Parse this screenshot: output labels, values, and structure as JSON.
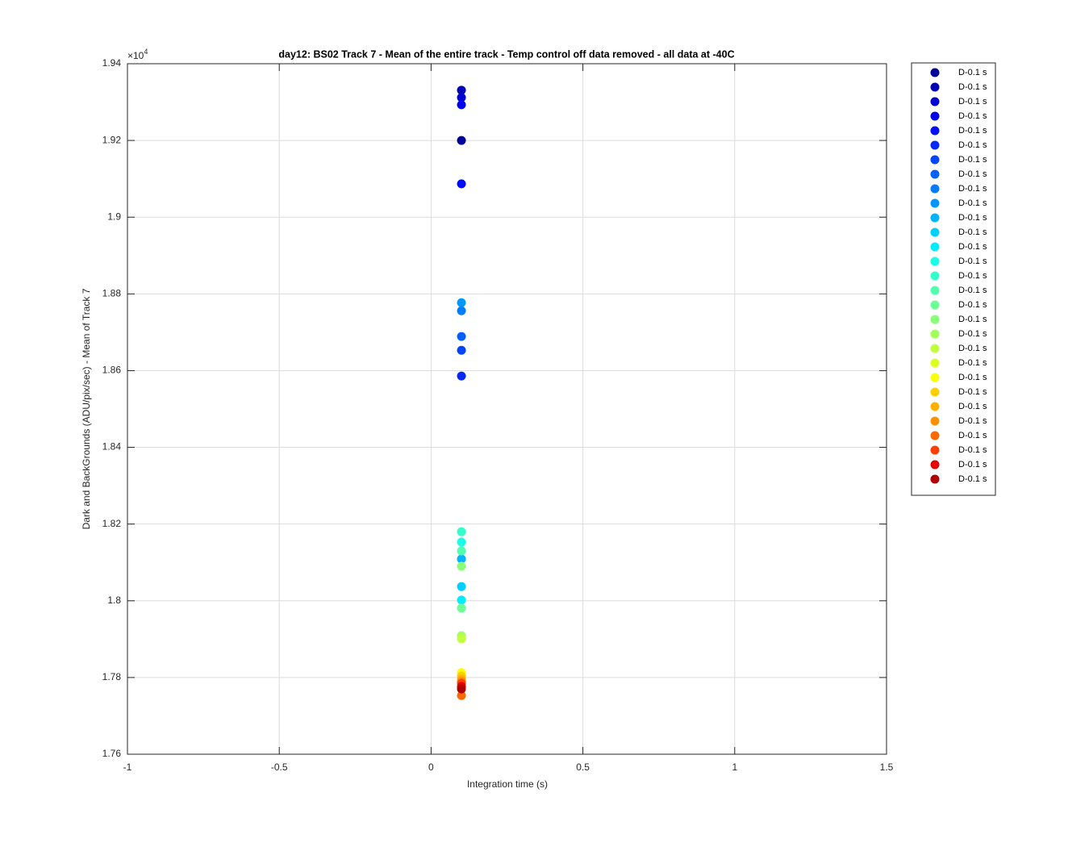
{
  "chart_data": {
    "type": "scatter",
    "title": "day12: BS02  Track 7 - Mean of the entire track - Temp control off data removed - all data at -40C",
    "x_label": "Integration time (s)",
    "y_label": "Dark and BackGrounds (ADU/pix/sec) - Mean of Track 7",
    "y_multiplier": {
      "base": "×10",
      "exponent": "4"
    },
    "xlim": [
      -1,
      1.5
    ],
    "xticks": [
      -1,
      -0.5,
      0,
      0.5,
      1,
      1.5
    ],
    "ylim": [
      17600,
      19400
    ],
    "yticks": [
      {
        "value": 17600,
        "label": "1.76"
      },
      {
        "value": 17800,
        "label": "1.78"
      },
      {
        "value": 18000,
        "label": "1.8"
      },
      {
        "value": 18200,
        "label": "1.82"
      },
      {
        "value": 18400,
        "label": "1.84"
      },
      {
        "value": 18600,
        "label": "1.86"
      },
      {
        "value": 18800,
        "label": "1.88"
      },
      {
        "value": 19000,
        "label": "1.9"
      },
      {
        "value": 19200,
        "label": "1.92"
      },
      {
        "value": 19400,
        "label": "1.94"
      }
    ],
    "grid": true,
    "legend_position": "outside-right",
    "series": [
      {
        "name": "D-0.1 s",
        "color": "#00009c",
        "x": [
          0.1
        ],
        "values": [
          19200
        ]
      },
      {
        "name": "D-0.1 s",
        "color": "#0000b8",
        "x": [
          0.1
        ],
        "values": [
          19331
        ]
      },
      {
        "name": "D-0.1 s",
        "color": "#0000d4",
        "x": [
          0.1
        ],
        "values": [
          19312
        ]
      },
      {
        "name": "D-0.1 s",
        "color": "#0000f0",
        "x": [
          0.1
        ],
        "values": [
          19293
        ]
      },
      {
        "name": "D-0.1 s",
        "color": "#000cff",
        "x": [
          0.1
        ],
        "values": [
          19087
        ]
      },
      {
        "name": "D-0.1 s",
        "color": "#0028ff",
        "x": [
          0.1
        ],
        "values": [
          18586
        ]
      },
      {
        "name": "D-0.1 s",
        "color": "#0044ff",
        "x": [
          0.1
        ],
        "values": [
          18653
        ]
      },
      {
        "name": "D-0.1 s",
        "color": "#0060ff",
        "x": [
          0.1
        ],
        "values": [
          18689
        ]
      },
      {
        "name": "D-0.1 s",
        "color": "#007cff",
        "x": [
          0.1
        ],
        "values": [
          18756
        ]
      },
      {
        "name": "D-0.1 s",
        "color": "#0098ff",
        "x": [
          0.1
        ],
        "values": [
          18777
        ]
      },
      {
        "name": "D-0.1 s",
        "color": "#00b4ff",
        "x": [
          0.1
        ],
        "values": [
          18109
        ]
      },
      {
        "name": "D-0.1 s",
        "color": "#00d0ff",
        "x": [
          0.1
        ],
        "values": [
          18037
        ]
      },
      {
        "name": "D-0.1 s",
        "color": "#00ecff",
        "x": [
          0.1
        ],
        "values": [
          18002
        ]
      },
      {
        "name": "D-0.1 s",
        "color": "#18ffe7",
        "x": [
          0.1
        ],
        "values": [
          18153
        ]
      },
      {
        "name": "D-0.1 s",
        "color": "#34ffcb",
        "x": [
          0.1
        ],
        "values": [
          18180
        ]
      },
      {
        "name": "D-0.1 s",
        "color": "#50ffaf",
        "x": [
          0.1
        ],
        "values": [
          18130
        ]
      },
      {
        "name": "D-0.1 s",
        "color": "#6cff93",
        "x": [
          0.1
        ],
        "values": [
          17981
        ]
      },
      {
        "name": "D-0.1 s",
        "color": "#88ff77",
        "x": [
          0.1
        ],
        "values": [
          18090
        ]
      },
      {
        "name": "D-0.1 s",
        "color": "#a4ff5b",
        "x": [
          0.1
        ],
        "values": [
          17909
        ]
      },
      {
        "name": "D-0.1 s",
        "color": "#c0ff3f",
        "x": [
          0.1
        ],
        "values": [
          17901
        ]
      },
      {
        "name": "D-0.1 s",
        "color": "#dcff23",
        "x": [
          0.1
        ],
        "values": [
          17775
        ]
      },
      {
        "name": "D-0.1 s",
        "color": "#f8ff07",
        "x": [
          0.1
        ],
        "values": [
          17813
        ]
      },
      {
        "name": "D-0.1 s",
        "color": "#ffd000",
        "x": [
          0.1
        ],
        "values": [
          17804
        ]
      },
      {
        "name": "D-0.1 s",
        "color": "#ffb000",
        "x": [
          0.1
        ],
        "values": [
          17796
        ]
      },
      {
        "name": "D-0.1 s",
        "color": "#ff9000",
        "x": [
          0.1
        ],
        "values": [
          17790
        ]
      },
      {
        "name": "D-0.1 s",
        "color": "#ff6800",
        "x": [
          0.1
        ],
        "values": [
          17753
        ]
      },
      {
        "name": "D-0.1 s",
        "color": "#ff4000",
        "x": [
          0.1
        ],
        "values": [
          17785
        ]
      },
      {
        "name": "D-0.1 s",
        "color": "#e80000",
        "x": [
          0.1
        ],
        "values": [
          17777
        ]
      },
      {
        "name": "D-0.1 s",
        "color": "#b00000",
        "x": [
          0.1
        ],
        "values": [
          17770
        ]
      }
    ]
  }
}
